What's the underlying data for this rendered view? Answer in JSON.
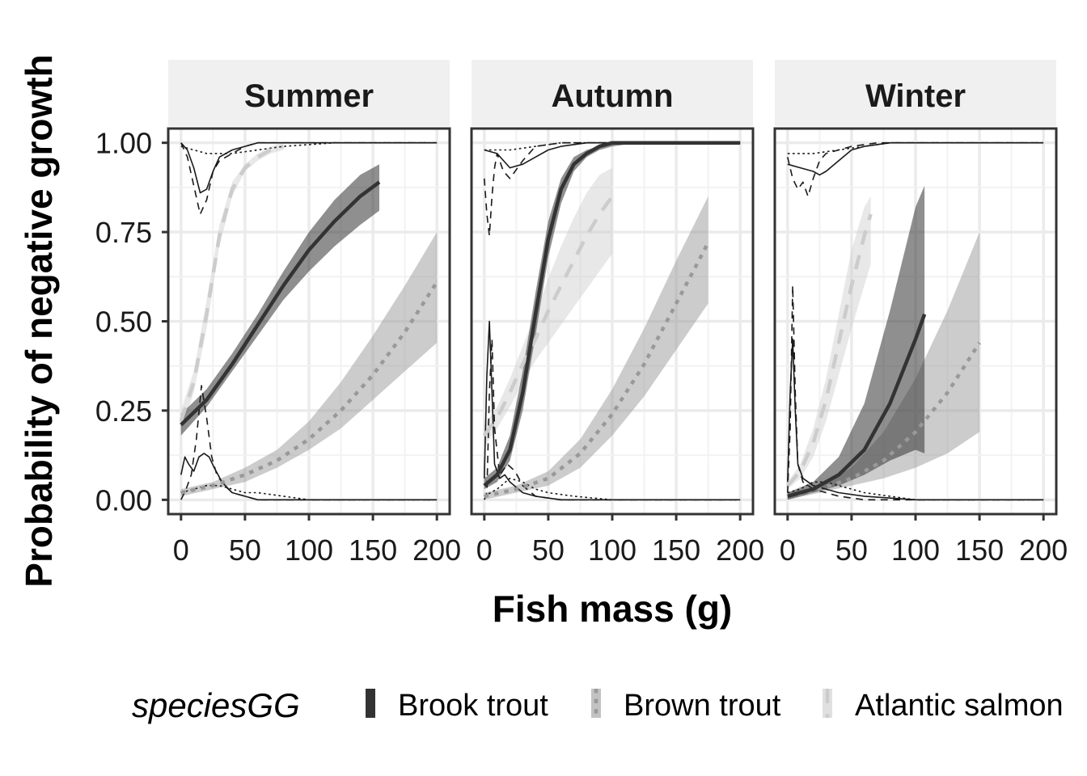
{
  "chart_data": {
    "type": "line",
    "xlabel": "Fish mass (g)",
    "ylabel": "Probability of negative growth",
    "xlim": [
      -10,
      210
    ],
    "ylim": [
      -0.04,
      1.04
    ],
    "x_ticks": [
      0,
      50,
      100,
      150,
      200
    ],
    "x_tick_labels": [
      "0",
      "50",
      "100",
      "150",
      "200"
    ],
    "y_ticks": [
      0,
      0.25,
      0.5,
      0.75,
      1.0
    ],
    "y_tick_labels": [
      "0.00",
      "0.25",
      "0.50",
      "0.75",
      "1.00"
    ],
    "grid": true,
    "legend": {
      "position": "bottom",
      "title": "speciesGG",
      "entries": [
        {
          "label": "Brook trout",
          "color": "#333333",
          "fill": "#333333",
          "dash": "solid"
        },
        {
          "label": "Brown trout",
          "color": "#999999",
          "fill": "#999999",
          "dash": "dotted"
        },
        {
          "label": "Atlantic salmon",
          "color": "#cccccc",
          "fill": "#cccccc",
          "dash": "dashed"
        }
      ]
    },
    "panels": [
      {
        "title": "Summer",
        "series": [
          {
            "name": "Atlantic salmon",
            "x": [
              0,
              10,
              20,
              30,
              40,
              50,
              60,
              70,
              80
            ],
            "y": [
              0.22,
              0.33,
              0.52,
              0.74,
              0.87,
              0.93,
              0.96,
              0.98,
              0.99
            ],
            "lower": [
              0.19,
              0.3,
              0.48,
              0.71,
              0.85,
              0.92,
              0.95,
              0.97,
              0.98
            ],
            "upper": [
              0.25,
              0.36,
              0.56,
              0.77,
              0.89,
              0.94,
              0.97,
              0.99,
              1.0
            ]
          },
          {
            "name": "Brook trout",
            "x": [
              0,
              20,
              40,
              60,
              80,
              100,
              120,
              140,
              155
            ],
            "y": [
              0.21,
              0.28,
              0.38,
              0.49,
              0.6,
              0.7,
              0.78,
              0.85,
              0.89
            ],
            "lower": [
              0.18,
              0.26,
              0.36,
              0.46,
              0.56,
              0.64,
              0.71,
              0.77,
              0.81
            ],
            "upper": [
              0.24,
              0.31,
              0.41,
              0.52,
              0.64,
              0.75,
              0.84,
              0.91,
              0.94
            ]
          },
          {
            "name": "Brown trout",
            "x": [
              0,
              25,
              50,
              75,
              100,
              125,
              150,
              175,
              200
            ],
            "y": [
              0.02,
              0.04,
              0.07,
              0.11,
              0.17,
              0.25,
              0.35,
              0.47,
              0.61
            ],
            "lower": [
              0.01,
              0.03,
              0.05,
              0.09,
              0.14,
              0.2,
              0.28,
              0.36,
              0.44
            ],
            "upper": [
              0.03,
              0.05,
              0.09,
              0.14,
              0.22,
              0.33,
              0.46,
              0.6,
              0.75
            ]
          }
        ],
        "density_upper": [
          {
            "x": [
              0,
              5,
              10,
              15,
              20,
              25,
              30,
              40,
              50,
              60,
              80,
              120,
              200
            ],
            "y": [
              1.0,
              0.98,
              0.93,
              0.86,
              0.87,
              0.92,
              0.96,
              0.98,
              0.99,
              1.0,
              1.0,
              1.0,
              1.0
            ],
            "dash": "solid"
          },
          {
            "x": [
              0,
              5,
              10,
              15,
              20,
              25,
              30,
              40,
              50,
              60,
              80,
              120,
              200
            ],
            "y": [
              1.0,
              0.96,
              0.88,
              0.8,
              0.84,
              0.92,
              0.95,
              0.97,
              0.99,
              1.0,
              1.0,
              1.0,
              1.0
            ],
            "dash": "dashed"
          },
          {
            "x": [
              0,
              10,
              20,
              40,
              60,
              80,
              120,
              160,
              200
            ],
            "y": [
              0.99,
              0.98,
              0.97,
              0.97,
              0.98,
              0.99,
              1.0,
              1.0,
              1.0
            ],
            "dash": "dotted"
          }
        ],
        "density_lower": [
          {
            "x": [
              0,
              3,
              6,
              10,
              14,
              18,
              22,
              26,
              32,
              40,
              50,
              60,
              80,
              200
            ],
            "y": [
              0.07,
              0.12,
              0.1,
              0.08,
              0.12,
              0.13,
              0.12,
              0.09,
              0.05,
              0.02,
              0.01,
              0.0,
              0.0,
              0.0
            ],
            "dash": "solid"
          },
          {
            "x": [
              0,
              4,
              8,
              12,
              16,
              20,
              24,
              28,
              34,
              40,
              50,
              60,
              80,
              200
            ],
            "y": [
              0.0,
              0.03,
              0.07,
              0.17,
              0.32,
              0.23,
              0.12,
              0.07,
              0.04,
              0.02,
              0.01,
              0.0,
              0.0,
              0.0
            ],
            "dash": "dashed"
          },
          {
            "x": [
              0,
              10,
              20,
              30,
              40,
              50,
              60,
              80,
              100,
              140,
              200
            ],
            "y": [
              0.02,
              0.03,
              0.04,
              0.04,
              0.03,
              0.02,
              0.02,
              0.01,
              0.0,
              0.0,
              0.0
            ],
            "dash": "dotted"
          }
        ]
      },
      {
        "title": "Autumn",
        "series": [
          {
            "name": "Atlantic salmon",
            "x": [
              0,
              10,
              20,
              30,
              40,
              50,
              60,
              70,
              80,
              90,
              100
            ],
            "y": [
              0.18,
              0.23,
              0.3,
              0.38,
              0.45,
              0.53,
              0.6,
              0.67,
              0.74,
              0.8,
              0.85
            ],
            "lower": [
              0.15,
              0.2,
              0.26,
              0.33,
              0.39,
              0.44,
              0.49,
              0.54,
              0.59,
              0.64,
              0.69
            ],
            "upper": [
              0.21,
              0.26,
              0.34,
              0.43,
              0.52,
              0.62,
              0.71,
              0.79,
              0.86,
              0.91,
              0.93
            ]
          },
          {
            "name": "Brook trout",
            "x": [
              0,
              10,
              20,
              30,
              40,
              50,
              60,
              70,
              80,
              90,
              100,
              120,
              150,
              200
            ],
            "y": [
              0.04,
              0.07,
              0.14,
              0.3,
              0.52,
              0.73,
              0.87,
              0.94,
              0.97,
              0.99,
              1.0,
              1.0,
              1.0,
              1.0
            ],
            "lower": [
              0.03,
              0.05,
              0.11,
              0.25,
              0.46,
              0.68,
              0.83,
              0.92,
              0.96,
              0.98,
              0.99,
              1.0,
              1.0,
              1.0
            ],
            "upper": [
              0.06,
              0.09,
              0.18,
              0.36,
              0.58,
              0.78,
              0.9,
              0.96,
              0.98,
              0.99,
              1.0,
              1.0,
              1.0,
              1.0
            ]
          },
          {
            "name": "Brown trout",
            "x": [
              0,
              25,
              50,
              75,
              100,
              125,
              150,
              175
            ],
            "y": [
              0.01,
              0.03,
              0.06,
              0.13,
              0.24,
              0.38,
              0.55,
              0.72
            ],
            "lower": [
              0.0,
              0.02,
              0.04,
              0.09,
              0.18,
              0.29,
              0.42,
              0.55
            ],
            "upper": [
              0.02,
              0.04,
              0.08,
              0.17,
              0.31,
              0.48,
              0.67,
              0.85
            ]
          }
        ],
        "density_upper": [
          {
            "x": [
              0,
              10,
              20,
              30,
              40,
              50,
              60,
              80,
              100,
              150,
              200
            ],
            "y": [
              0.98,
              0.97,
              0.93,
              0.94,
              0.96,
              0.98,
              0.99,
              1.0,
              1.0,
              1.0,
              1.0
            ],
            "dash": "solid"
          },
          {
            "x": [
              0,
              2,
              4,
              6,
              8,
              10,
              15,
              20,
              30,
              40,
              60,
              100,
              200
            ],
            "y": [
              0.9,
              0.8,
              0.74,
              0.85,
              0.93,
              0.97,
              0.92,
              0.9,
              0.95,
              0.99,
              1.0,
              1.0,
              1.0
            ],
            "dash": "dashed"
          },
          {
            "x": [
              0,
              20,
              40,
              60,
              80,
              100,
              150,
              200
            ],
            "y": [
              0.98,
              0.98,
              0.99,
              1.0,
              1.0,
              1.0,
              1.0,
              1.0
            ],
            "dash": "dotted"
          }
        ],
        "density_lower": [
          {
            "x": [
              0,
              2,
              4,
              6,
              8,
              12,
              16,
              20,
              30,
              40,
              60,
              100,
              200
            ],
            "y": [
              0.06,
              0.35,
              0.5,
              0.3,
              0.1,
              0.06,
              0.07,
              0.05,
              0.02,
              0.01,
              0.0,
              0.0,
              0.0
            ],
            "dash": "solid"
          },
          {
            "x": [
              0,
              2,
              4,
              6,
              8,
              12,
              18,
              24,
              30,
              40,
              60,
              100,
              200
            ],
            "y": [
              0.0,
              0.02,
              0.3,
              0.45,
              0.2,
              0.07,
              0.1,
              0.08,
              0.04,
              0.01,
              0.0,
              0.0,
              0.0
            ],
            "dash": "dashed"
          },
          {
            "x": [
              0,
              10,
              20,
              30,
              40,
              50,
              70,
              100,
              150,
              200
            ],
            "y": [
              0.01,
              0.03,
              0.06,
              0.05,
              0.03,
              0.02,
              0.01,
              0.0,
              0.0,
              0.0
            ],
            "dash": "dotted"
          }
        ]
      },
      {
        "title": "Winter",
        "series": [
          {
            "name": "Atlantic salmon",
            "x": [
              0,
              10,
              20,
              30,
              40,
              50,
              60,
              65
            ],
            "y": [
              0.04,
              0.08,
              0.16,
              0.28,
              0.44,
              0.6,
              0.74,
              0.8
            ],
            "lower": [
              0.03,
              0.06,
              0.12,
              0.22,
              0.35,
              0.48,
              0.6,
              0.66
            ],
            "upper": [
              0.05,
              0.1,
              0.2,
              0.34,
              0.52,
              0.7,
              0.82,
              0.85
            ]
          },
          {
            "name": "Brook trout",
            "x": [
              0,
              20,
              40,
              60,
              80,
              100,
              107
            ],
            "y": [
              0.01,
              0.03,
              0.07,
              0.14,
              0.27,
              0.45,
              0.52
            ],
            "lower": [
              0.0,
              0.02,
              0.04,
              0.07,
              0.11,
              0.14,
              0.13
            ],
            "upper": [
              0.02,
              0.05,
              0.12,
              0.27,
              0.53,
              0.82,
              0.88
            ]
          },
          {
            "name": "Brown trout",
            "x": [
              0,
              25,
              50,
              75,
              100,
              125,
              150
            ],
            "y": [
              0.01,
              0.03,
              0.06,
              0.11,
              0.19,
              0.3,
              0.44
            ],
            "lower": [
              0.0,
              0.02,
              0.04,
              0.06,
              0.09,
              0.13,
              0.19
            ],
            "upper": [
              0.02,
              0.04,
              0.09,
              0.19,
              0.34,
              0.53,
              0.75
            ]
          }
        ],
        "density_upper": [
          {
            "x": [
              0,
              10,
              20,
              25,
              30,
              40,
              50,
              60,
              80,
              120,
              200
            ],
            "y": [
              0.94,
              0.93,
              0.92,
              0.91,
              0.92,
              0.95,
              0.98,
              0.99,
              1.0,
              1.0,
              1.0
            ],
            "dash": "solid"
          },
          {
            "x": [
              0,
              4,
              8,
              12,
              16,
              20,
              25,
              30,
              40,
              50,
              70,
              100,
              200
            ],
            "y": [
              0.96,
              0.9,
              0.87,
              0.89,
              0.85,
              0.9,
              0.95,
              0.97,
              0.98,
              0.99,
              1.0,
              1.0,
              1.0
            ],
            "dash": "dashed"
          },
          {
            "x": [
              0,
              20,
              40,
              60,
              80,
              100,
              150,
              200
            ],
            "y": [
              0.97,
              0.97,
              0.98,
              0.99,
              1.0,
              1.0,
              1.0,
              1.0
            ],
            "dash": "dotted"
          }
        ],
        "density_lower": [
          {
            "x": [
              0,
              2,
              4,
              6,
              8,
              12,
              20,
              30,
              40,
              60,
              100,
              200
            ],
            "y": [
              0.05,
              0.3,
              0.45,
              0.25,
              0.1,
              0.06,
              0.04,
              0.03,
              0.02,
              0.01,
              0.0,
              0.0
            ],
            "dash": "solid"
          },
          {
            "x": [
              0,
              2,
              4,
              6,
              8,
              12,
              20,
              30,
              40,
              60,
              100,
              200
            ],
            "y": [
              0.02,
              0.2,
              0.6,
              0.3,
              0.1,
              0.05,
              0.03,
              0.02,
              0.01,
              0.0,
              0.0,
              0.0
            ],
            "dash": "dashed"
          },
          {
            "x": [
              0,
              10,
              20,
              30,
              40,
              60,
              80,
              100,
              150,
              200
            ],
            "y": [
              0.02,
              0.03,
              0.05,
              0.05,
              0.04,
              0.02,
              0.01,
              0.0,
              0.0,
              0.0
            ],
            "dash": "dotted"
          }
        ]
      }
    ]
  }
}
